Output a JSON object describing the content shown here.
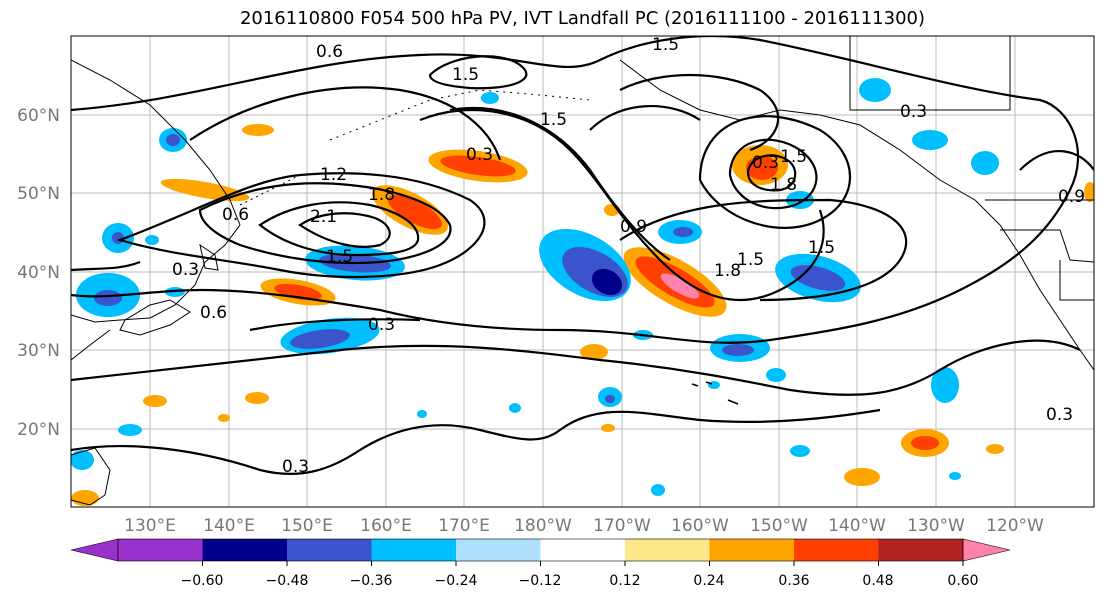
{
  "title": "2016110800 F054 500 hPa PV, IVT Landfall PC (2016111100 - 2016111300)",
  "lat_labels": [
    "60°N",
    "50°N",
    "40°N",
    "30°N",
    "20°N"
  ],
  "lon_labels": [
    "130°E",
    "140°E",
    "150°E",
    "160°E",
    "170°E",
    "180°W",
    "170°W",
    "160°W",
    "150°W",
    "140°W",
    "130°W",
    "120°W"
  ],
  "contour_labels": [
    "0.6",
    "1.5",
    "1.5",
    "0.3",
    "1.5",
    "1.2",
    "1.8",
    "2.1",
    "0.6",
    "1.5",
    "0.3",
    "0.6",
    "0.3",
    "0.9",
    "1.8",
    "1.5",
    "1.5",
    "1.8",
    "0.3",
    "1.5",
    "0.3",
    "0.3",
    "0.3",
    "0.9"
  ],
  "colorbar": {
    "ticks": [
      "−0.60",
      "−0.48",
      "−0.36",
      "−0.24",
      "−0.12",
      "0.12",
      "0.24",
      "0.36",
      "0.48",
      "0.60"
    ],
    "colors": [
      "#9932CC",
      "#00008B",
      "#3A55CC",
      "#00BFFF",
      "#B0E2FF",
      "#FFFFFF",
      "#FFE88A",
      "#FFA500",
      "#FF4000",
      "#B22222",
      "#FF82AB"
    ]
  }
}
